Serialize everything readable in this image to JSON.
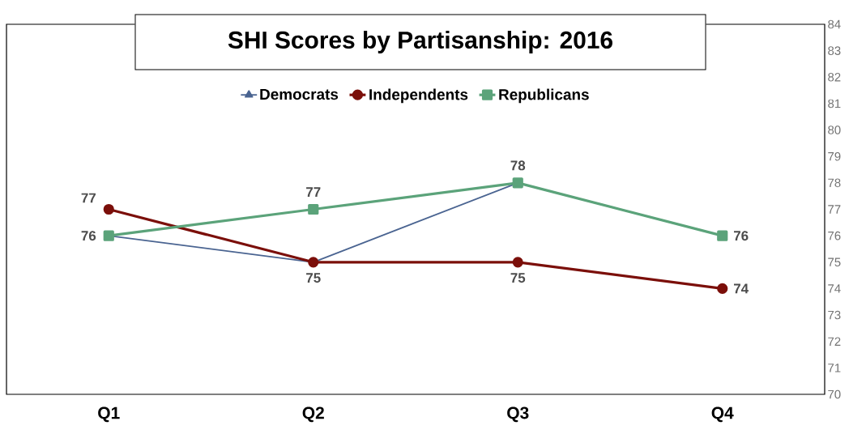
{
  "chart_data": {
    "type": "line",
    "title": "SHI Scores by Partisanship: 2016",
    "categories": [
      "Q1",
      "Q2",
      "Q3",
      "Q4"
    ],
    "series": [
      {
        "name": "Democrats",
        "color": "#4a6491",
        "marker": "triangle",
        "line_style": "solid",
        "values": [
          76,
          75,
          78,
          76
        ],
        "value_labels": [
          "76",
          "75",
          null,
          null
        ]
      },
      {
        "name": "Independents",
        "color": "#7b0f0a",
        "marker": "circle",
        "line_style": "solid",
        "values": [
          77,
          75,
          75,
          74
        ],
        "value_labels": [
          "77",
          null,
          "75",
          "74"
        ]
      },
      {
        "name": "Republicans",
        "color": "#5ba37a",
        "marker": "square",
        "line_style": "solid",
        "values": [
          76,
          77,
          78,
          76
        ],
        "value_labels": [
          null,
          "77",
          "78",
          "76"
        ]
      }
    ],
    "ylim": [
      70,
      84
    ],
    "yticks": [
      70,
      71,
      72,
      73,
      74,
      75,
      76,
      77,
      78,
      79,
      80,
      81,
      82,
      83,
      84
    ],
    "grid": false,
    "legend": "top"
  }
}
